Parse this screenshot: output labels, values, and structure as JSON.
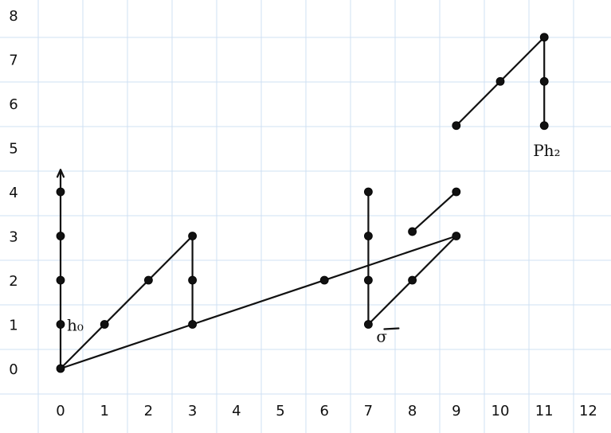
{
  "chart_data": {
    "type": "scatter",
    "x_ticks": [
      "0",
      "1",
      "2",
      "3",
      "4",
      "5",
      "6",
      "7",
      "8",
      "9",
      "10",
      "11",
      "12"
    ],
    "y_ticks": [
      "0",
      "1",
      "2",
      "3",
      "4",
      "5",
      "6",
      "7",
      "8"
    ],
    "xlim": [
      0,
      12
    ],
    "ylim": [
      0,
      8
    ],
    "grid": true,
    "points": [
      [
        0,
        0
      ],
      [
        0,
        1
      ],
      [
        0,
        2
      ],
      [
        0,
        3
      ],
      [
        0,
        4
      ],
      [
        1,
        1
      ],
      [
        2,
        2
      ],
      [
        3,
        3
      ],
      [
        3,
        2
      ],
      [
        3,
        1
      ],
      [
        6,
        2
      ],
      [
        7,
        4
      ],
      [
        7,
        3
      ],
      [
        7,
        2
      ],
      [
        7,
        1
      ],
      [
        8,
        2
      ],
      [
        9,
        3
      ],
      [
        8,
        3.1
      ],
      [
        9,
        4
      ],
      [
        9,
        5.5
      ],
      [
        10,
        6.5
      ],
      [
        11,
        7.5
      ],
      [
        11,
        6.5
      ],
      [
        11,
        5.5
      ]
    ],
    "segments": [
      [
        [
          0,
          0
        ],
        [
          0,
          4.5
        ]
      ],
      [
        [
          0,
          0
        ],
        [
          3,
          3
        ]
      ],
      [
        [
          3,
          3
        ],
        [
          3,
          1
        ]
      ],
      [
        [
          0,
          0
        ],
        [
          3,
          1
        ]
      ],
      [
        [
          3,
          1
        ],
        [
          9,
          3
        ]
      ],
      [
        [
          7,
          4
        ],
        [
          7,
          1
        ]
      ],
      [
        [
          7,
          1
        ],
        [
          9,
          3
        ]
      ],
      [
        [
          8,
          3.1
        ],
        [
          9,
          4
        ]
      ],
      [
        [
          9,
          5.5
        ],
        [
          11,
          7.5
        ]
      ],
      [
        [
          11,
          7.5
        ],
        [
          11,
          5.5
        ]
      ]
    ],
    "annotations": [
      {
        "text": "h₀",
        "at": [
          0,
          1
        ]
      },
      {
        "text": "σ",
        "at": [
          7,
          1
        ]
      },
      {
        "text": "Ph₂",
        "at": [
          11,
          5.5
        ]
      }
    ]
  }
}
